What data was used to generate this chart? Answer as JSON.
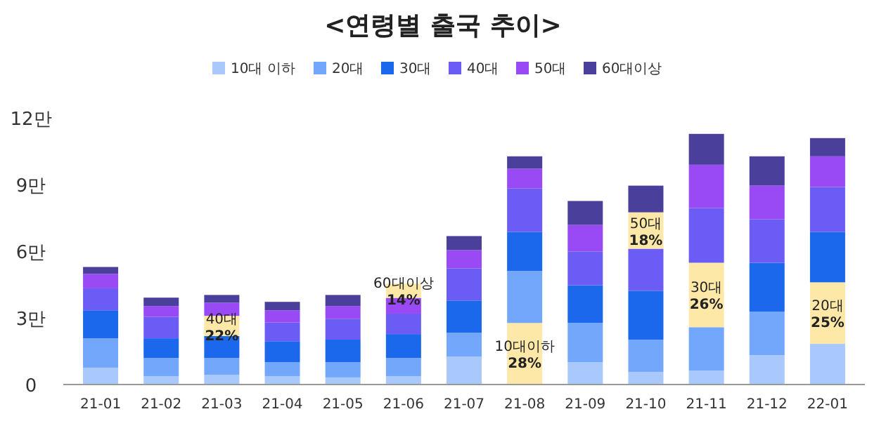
{
  "chart_data": {
    "type": "bar",
    "stacked": true,
    "title": "<연령별 출국 추이>",
    "legend": "top",
    "grid": false,
    "categories": [
      "21-01",
      "21-02",
      "21-03",
      "21-04",
      "21-05",
      "21-06",
      "21-07",
      "21-08",
      "21-09",
      "21-10",
      "21-11",
      "21-12",
      "22-01"
    ],
    "ylim": [
      0,
      12
    ],
    "yticks": [
      {
        "value": 0,
        "label": "0"
      },
      {
        "value": 3,
        "label": "3만"
      },
      {
        "value": 6,
        "label": "6만"
      },
      {
        "value": 9,
        "label": "9만"
      },
      {
        "value": 12,
        "label": "12만"
      }
    ],
    "series": [
      {
        "name": "10대 이하",
        "color": "#a9c8fb",
        "values": [
          0.76,
          0.38,
          0.44,
          0.38,
          0.32,
          0.38,
          1.26,
          2.77,
          1.01,
          0.57,
          0.63,
          1.32,
          1.83
        ],
        "colors": [
          "#a9c8fb",
          "#a9c8fb",
          "#a9c8fb",
          "#a9c8fb",
          "#a9c8fb",
          "#a9c8fb",
          "#a9c8fb",
          "#fde8a8",
          "#a9c8fb",
          "#a9c8fb",
          "#a9c8fb",
          "#a9c8fb",
          "#a9c8fb"
        ]
      },
      {
        "name": "20대",
        "color": "#72a7fb",
        "values": [
          1.32,
          0.82,
          0.76,
          0.63,
          0.69,
          0.82,
          1.07,
          2.34,
          1.76,
          1.45,
          1.95,
          1.96,
          2.77
        ],
        "colors": [
          "#72a7fb",
          "#72a7fb",
          "#72a7fb",
          "#72a7fb",
          "#72a7fb",
          "#72a7fb",
          "#72a7fb",
          "#72a7fb",
          "#72a7fb",
          "#72a7fb",
          "#72a7fb",
          "#72a7fb",
          "#fde8a8"
        ]
      },
      {
        "name": "30대",
        "color": "#1c68ec",
        "values": [
          1.26,
          0.88,
          0.98,
          0.94,
          1.01,
          1.07,
          1.45,
          1.76,
          1.7,
          2.2,
          2.9,
          2.2,
          2.27
        ],
        "colors": [
          "#1c68ec",
          "#1c68ec",
          "#1c68ec",
          "#1c68ec",
          "#1c68ec",
          "#1c68ec",
          "#1c68ec",
          "#1c68ec",
          "#1c68ec",
          "#1c68ec",
          "#fde8a8",
          "#1c68ec",
          "#1c68ec"
        ]
      },
      {
        "name": "40대",
        "color": "#6b5cf6",
        "values": [
          0.99,
          0.97,
          0.91,
          0.84,
          0.94,
          0.92,
          1.45,
          1.95,
          1.52,
          1.89,
          2.46,
          1.96,
          2.02
        ],
        "colors": [
          "#6b5cf6",
          "#6b5cf6",
          "#fde8a8",
          "#6b5cf6",
          "#6b5cf6",
          "#6b5cf6",
          "#6b5cf6",
          "#6b5cf6",
          "#6b5cf6",
          "#6b5cf6",
          "#6b5cf6",
          "#6b5cf6",
          "#6b5cf6"
        ]
      },
      {
        "name": "50대",
        "color": "#9a4af5",
        "values": [
          0.65,
          0.48,
          0.59,
          0.55,
          0.57,
          0.71,
          0.82,
          0.89,
          1.19,
          1.64,
          1.95,
          1.51,
          1.38
        ],
        "colors": [
          "#9a4af5",
          "#9a4af5",
          "#9a4af5",
          "#9a4af5",
          "#9a4af5",
          "#9a4af5",
          "#9a4af5",
          "#9a4af5",
          "#9a4af5",
          "#fde8a8",
          "#9a4af5",
          "#9a4af5",
          "#9a4af5"
        ]
      },
      {
        "name": "60대이상",
        "color": "#4a3f9a",
        "values": [
          0.31,
          0.38,
          0.35,
          0.38,
          0.5,
          0.64,
          0.63,
          0.56,
          1.08,
          1.2,
          1.39,
          1.32,
          0.82
        ],
        "colors": [
          "#4a3f9a",
          "#4a3f9a",
          "#4a3f9a",
          "#4a3f9a",
          "#4a3f9a",
          "#fde8a8",
          "#4a3f9a",
          "#4a3f9a",
          "#4a3f9a",
          "#4a3f9a",
          "#4a3f9a",
          "#4a3f9a",
          "#4a3f9a"
        ]
      }
    ],
    "annotations": [
      "40대\n22%",
      "60대이상\n14%",
      "10대이하\n28%",
      "50대\n18%",
      "30대\n26%",
      "20대\n25%"
    ]
  }
}
